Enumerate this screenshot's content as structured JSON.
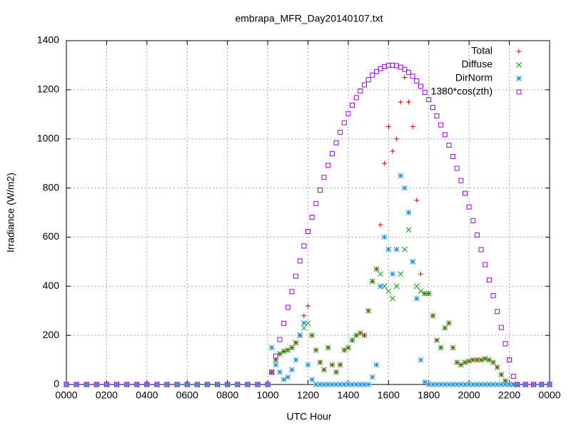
{
  "chart_data": {
    "type": "scatter",
    "title": "embrapa_MFR_Day20140107.txt",
    "x_label": "UTC Hour",
    "y_label": "Irradiance (W/m2)",
    "xlim": [
      0,
      24
    ],
    "ylim": [
      0,
      1400
    ],
    "xticks": [
      {
        "value": 0,
        "label": "0000"
      },
      {
        "value": 2,
        "label": "0200"
      },
      {
        "value": 4,
        "label": "0400"
      },
      {
        "value": 6,
        "label": "0600"
      },
      {
        "value": 8,
        "label": "0800"
      },
      {
        "value": 10,
        "label": "1000"
      },
      {
        "value": 12,
        "label": "1200"
      },
      {
        "value": 14,
        "label": "1400"
      },
      {
        "value": 16,
        "label": "1600"
      },
      {
        "value": 18,
        "label": "1800"
      },
      {
        "value": 20,
        "label": "2000"
      },
      {
        "value": 22,
        "label": "2200"
      },
      {
        "value": 24,
        "label": "0000"
      }
    ],
    "yticks": [
      0,
      200,
      400,
      600,
      800,
      1000,
      1200,
      1400
    ],
    "grid": true,
    "legend": "top-right",
    "x": [
      0,
      0.5,
      1,
      1.5,
      2,
      2.5,
      3,
      3.5,
      4,
      4.5,
      5,
      5.5,
      6,
      6.5,
      7,
      7.5,
      8,
      8.5,
      9,
      9.5,
      10,
      10.2,
      10.4,
      10.6,
      10.8,
      11,
      11.2,
      11.4,
      11.6,
      11.8,
      12,
      12.2,
      12.4,
      12.6,
      12.8,
      13,
      13.2,
      13.4,
      13.6,
      13.8,
      14,
      14.2,
      14.4,
      14.6,
      14.8,
      15,
      15.2,
      15.4,
      15.6,
      15.8,
      16,
      16.2,
      16.4,
      16.6,
      16.8,
      17,
      17.2,
      17.4,
      17.6,
      17.8,
      18,
      18.2,
      18.4,
      18.6,
      18.8,
      19,
      19.2,
      19.4,
      19.6,
      19.8,
      20,
      20.2,
      20.4,
      20.6,
      20.8,
      21,
      21.2,
      21.4,
      21.6,
      21.8,
      22,
      22.2,
      22.4,
      22.8,
      23.2,
      23.6,
      24
    ],
    "series": [
      {
        "name": "Total",
        "color": "#e00000",
        "marker": "plus",
        "values": [
          0,
          0,
          0,
          0,
          0,
          0,
          0,
          0,
          0,
          0,
          0,
          0,
          0,
          0,
          0,
          0,
          0,
          0,
          0,
          0,
          0,
          50,
          100,
          125,
          135,
          140,
          150,
          170,
          200,
          280,
          320,
          200,
          140,
          90,
          60,
          150,
          80,
          50,
          80,
          140,
          150,
          180,
          200,
          210,
          200,
          300,
          420,
          470,
          650,
          900,
          1050,
          950,
          1000,
          1150,
          1250,
          1150,
          1050,
          750,
          450,
          370,
          370,
          280,
          180,
          150,
          230,
          250,
          150,
          90,
          80,
          90,
          95,
          100,
          100,
          100,
          105,
          100,
          90,
          70,
          40,
          15,
          0,
          0,
          0,
          0,
          0,
          0,
          0
        ]
      },
      {
        "name": "Diffuse",
        "color": "#00a000",
        "marker": "cross",
        "values": [
          0,
          0,
          0,
          0,
          0,
          0,
          0,
          0,
          0,
          0,
          0,
          0,
          0,
          0,
          0,
          0,
          0,
          0,
          0,
          0,
          0,
          50,
          100,
          125,
          135,
          140,
          150,
          170,
          200,
          230,
          250,
          200,
          140,
          90,
          60,
          150,
          80,
          50,
          80,
          140,
          150,
          180,
          200,
          210,
          200,
          300,
          420,
          470,
          450,
          400,
          380,
          350,
          400,
          450,
          550,
          630,
          500,
          400,
          380,
          370,
          370,
          280,
          180,
          150,
          230,
          250,
          150,
          90,
          80,
          90,
          95,
          100,
          100,
          100,
          105,
          100,
          90,
          70,
          40,
          15,
          0,
          0,
          0,
          0,
          0,
          0,
          0
        ]
      },
      {
        "name": "DirNorm",
        "color": "#1a8fe0",
        "marker": "star",
        "values": [
          0,
          0,
          0,
          0,
          0,
          0,
          0,
          0,
          0,
          0,
          0,
          0,
          0,
          0,
          0,
          0,
          0,
          0,
          0,
          0,
          0,
          150,
          80,
          50,
          20,
          30,
          60,
          100,
          200,
          250,
          80,
          20,
          0,
          0,
          0,
          0,
          0,
          0,
          0,
          0,
          0,
          0,
          0,
          0,
          0,
          0,
          30,
          80,
          400,
          600,
          550,
          450,
          550,
          850,
          800,
          700,
          500,
          350,
          100,
          10,
          0,
          0,
          0,
          0,
          0,
          0,
          0,
          0,
          0,
          0,
          0,
          0,
          0,
          0,
          0,
          0,
          0,
          0,
          0,
          0,
          0,
          0,
          0,
          0,
          0,
          0,
          0
        ]
      },
      {
        "name": "1380*cos(zth)",
        "color": "#a000e0",
        "marker": "square",
        "values": [
          0,
          0,
          0,
          0,
          0,
          0,
          0,
          0,
          0,
          0,
          0,
          0,
          0,
          0,
          0,
          0,
          0,
          0,
          0,
          0,
          0,
          50,
          116,
          183,
          249,
          314,
          378,
          441,
          503,
          564,
          623,
          681,
          737,
          791,
          843,
          892,
          940,
          984,
          1027,
          1066,
          1103,
          1137,
          1168,
          1195,
          1220,
          1241,
          1260,
          1274,
          1286,
          1294,
          1299,
          1300,
          1298,
          1292,
          1283,
          1271,
          1255,
          1236,
          1214,
          1189,
          1160,
          1128,
          1094,
          1057,
          1017,
          974,
          928,
          880,
          830,
          778,
          723,
          667,
          609,
          549,
          488,
          425,
          362,
          297,
          232,
          166,
          100,
          33,
          0,
          0,
          0,
          0,
          0
        ]
      }
    ]
  }
}
